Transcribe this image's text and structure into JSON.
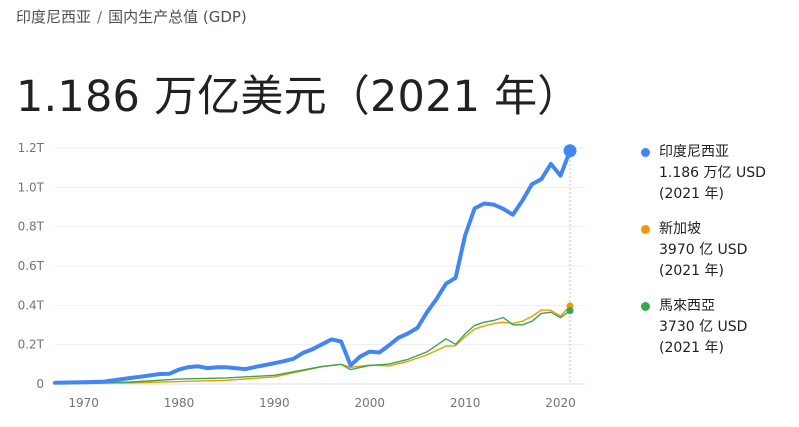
{
  "breadcrumb": {
    "parent": "印度尼西亚",
    "separator": "/",
    "current": "国内生产总值 (GDP)"
  },
  "headline": {
    "value": "1.186 万亿美元",
    "period": "（2021 年）"
  },
  "colors": {
    "indonesia": "#4285f4",
    "singapore": "#f29900",
    "malaysia": "#34a853",
    "grid": "#eeeeee",
    "axis_text": "#70757a"
  },
  "chart_data": {
    "type": "line",
    "x_ticks": [
      1970,
      1980,
      1990,
      2000,
      2010,
      2020
    ],
    "y_ticks": [
      0,
      0.2,
      0.4,
      0.6,
      0.8,
      1.0,
      1.2
    ],
    "y_tick_labels": [
      "0",
      "0.2T",
      "0.4T",
      "0.6T",
      "0.8T",
      "1.0T",
      "1.2T"
    ],
    "xlim": [
      1967,
      2021
    ],
    "ylim": [
      0,
      1.2
    ],
    "grid": true,
    "legend_position": "right",
    "series": [
      {
        "name": "印度尼西亚",
        "value_label": "1.186 万亿 USD",
        "period_label": "(2021 年)",
        "color": "#4285f4",
        "points": [
          [
            1967,
            0.006
          ],
          [
            1970,
            0.009
          ],
          [
            1972,
            0.011
          ],
          [
            1974,
            0.025
          ],
          [
            1976,
            0.037
          ],
          [
            1978,
            0.051
          ],
          [
            1979,
            0.052
          ],
          [
            1980,
            0.073
          ],
          [
            1981,
            0.086
          ],
          [
            1982,
            0.09
          ],
          [
            1983,
            0.081
          ],
          [
            1984,
            0.085
          ],
          [
            1985,
            0.085
          ],
          [
            1986,
            0.08
          ],
          [
            1987,
            0.076
          ],
          [
            1988,
            0.087
          ],
          [
            1989,
            0.096
          ],
          [
            1990,
            0.106
          ],
          [
            1991,
            0.116
          ],
          [
            1992,
            0.128
          ],
          [
            1993,
            0.158
          ],
          [
            1994,
            0.177
          ],
          [
            1995,
            0.202
          ],
          [
            1996,
            0.227
          ],
          [
            1997,
            0.216
          ],
          [
            1998,
            0.095
          ],
          [
            1999,
            0.14
          ],
          [
            2000,
            0.165
          ],
          [
            2001,
            0.16
          ],
          [
            2002,
            0.196
          ],
          [
            2003,
            0.235
          ],
          [
            2004,
            0.257
          ],
          [
            2005,
            0.285
          ],
          [
            2006,
            0.364
          ],
          [
            2007,
            0.432
          ],
          [
            2008,
            0.51
          ],
          [
            2009,
            0.54
          ],
          [
            2010,
            0.755
          ],
          [
            2011,
            0.893
          ],
          [
            2012,
            0.918
          ],
          [
            2013,
            0.912
          ],
          [
            2014,
            0.891
          ],
          [
            2015,
            0.861
          ],
          [
            2016,
            0.932
          ],
          [
            2017,
            1.016
          ],
          [
            2018,
            1.042
          ],
          [
            2019,
            1.119
          ],
          [
            2020,
            1.059
          ],
          [
            2021,
            1.186
          ]
        ]
      },
      {
        "name": "新加坡",
        "value_label": "3970 亿 USD",
        "period_label": "(2021 年)",
        "color": "#f29900",
        "points": [
          [
            1967,
            0.002
          ],
          [
            1970,
            0.002
          ],
          [
            1975,
            0.006
          ],
          [
            1980,
            0.012
          ],
          [
            1985,
            0.019
          ],
          [
            1990,
            0.036
          ],
          [
            1995,
            0.088
          ],
          [
            1997,
            0.1
          ],
          [
            1998,
            0.085
          ],
          [
            2000,
            0.096
          ],
          [
            2002,
            0.092
          ],
          [
            2004,
            0.115
          ],
          [
            2006,
            0.148
          ],
          [
            2008,
            0.193
          ],
          [
            2009,
            0.194
          ],
          [
            2010,
            0.24
          ],
          [
            2011,
            0.279
          ],
          [
            2012,
            0.295
          ],
          [
            2013,
            0.307
          ],
          [
            2014,
            0.314
          ],
          [
            2015,
            0.308
          ],
          [
            2016,
            0.319
          ],
          [
            2017,
            0.343
          ],
          [
            2018,
            0.377
          ],
          [
            2019,
            0.375
          ],
          [
            2020,
            0.345
          ],
          [
            2021,
            0.397
          ]
        ]
      },
      {
        "name": "馬來西亞",
        "value_label": "3730 亿 USD",
        "period_label": "(2021 年)",
        "color": "#34a853",
        "points": [
          [
            1967,
            0.003
          ],
          [
            1970,
            0.004
          ],
          [
            1975,
            0.01
          ],
          [
            1980,
            0.025
          ],
          [
            1985,
            0.031
          ],
          [
            1990,
            0.044
          ],
          [
            1995,
            0.089
          ],
          [
            1997,
            0.1
          ],
          [
            1998,
            0.073
          ],
          [
            2000,
            0.094
          ],
          [
            2002,
            0.101
          ],
          [
            2004,
            0.125
          ],
          [
            2006,
            0.163
          ],
          [
            2008,
            0.23
          ],
          [
            2009,
            0.202
          ],
          [
            2010,
            0.255
          ],
          [
            2011,
            0.298
          ],
          [
            2012,
            0.314
          ],
          [
            2013,
            0.323
          ],
          [
            2014,
            0.338
          ],
          [
            2015,
            0.301
          ],
          [
            2016,
            0.301
          ],
          [
            2017,
            0.319
          ],
          [
            2018,
            0.359
          ],
          [
            2019,
            0.365
          ],
          [
            2020,
            0.337
          ],
          [
            2021,
            0.373
          ]
        ]
      }
    ]
  }
}
